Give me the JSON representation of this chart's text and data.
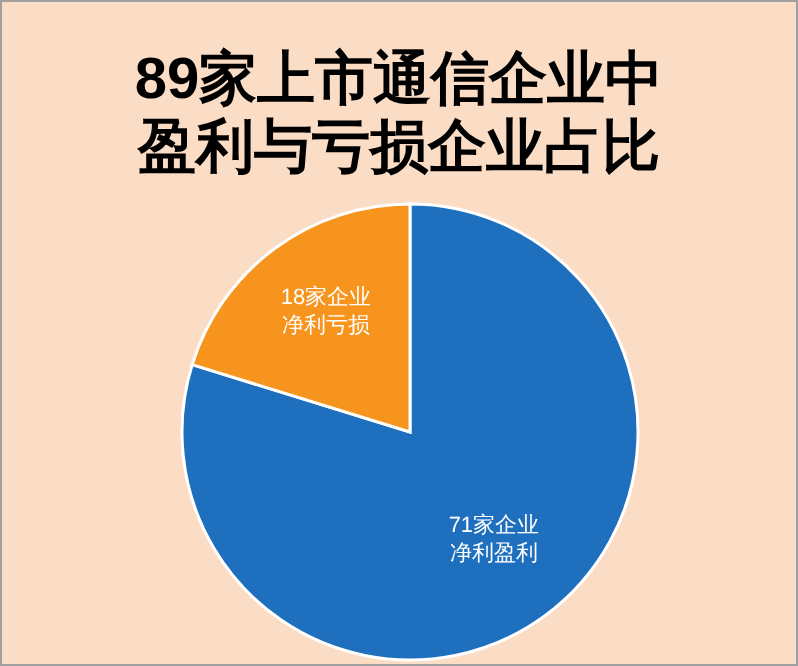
{
  "chart_data": {
    "type": "pie",
    "title": "89家上市通信企业中盈利与亏损企业占比",
    "categories": [
      "净利盈利",
      "净利亏损"
    ],
    "values": [
      71,
      18
    ],
    "value_labels": [
      "71家企业",
      "18家企业"
    ],
    "colors": [
      "#1f6fbf",
      "#f7941d"
    ]
  }
}
